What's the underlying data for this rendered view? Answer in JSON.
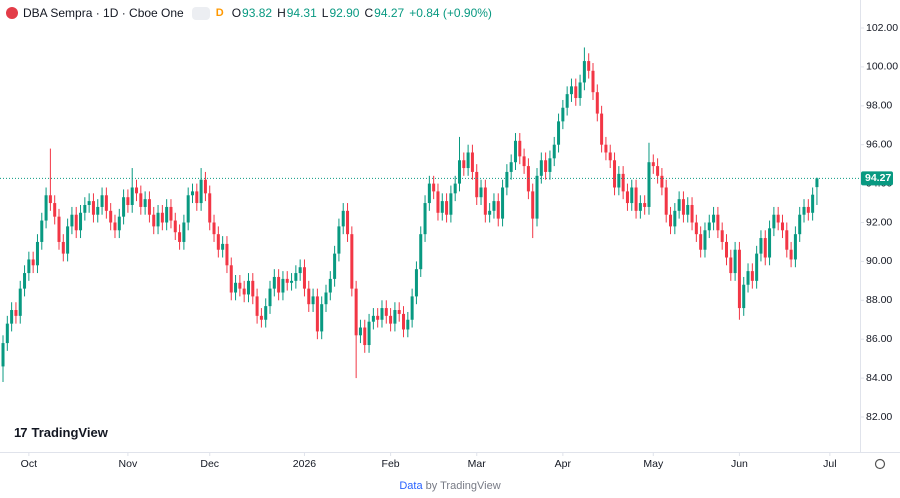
{
  "header": {
    "symbol": "DBA Sempra · 1D · Cboe One",
    "badge": "D",
    "o_label": "O",
    "open": "93.82",
    "h_label": "H",
    "high": "94.31",
    "l_label": "L",
    "low": "92.90",
    "c_label": "C",
    "close": "94.27",
    "change": "+0.84 (+0.90%)"
  },
  "logo": "TradingView",
  "footer": {
    "link": "Data",
    "text": "by TradingView"
  },
  "chart_data": {
    "type": "candlestick",
    "up_color": "#089981",
    "down_color": "#f23645",
    "price_tag": "94.27",
    "ylim": [
      80.2,
      103.44
    ],
    "xlim": [
      -0.7,
      199
    ],
    "yticks": [
      {
        "value": 82,
        "label": "82.00"
      },
      {
        "value": 84,
        "label": "84.00"
      },
      {
        "value": 86,
        "label": "86.00"
      },
      {
        "value": 88,
        "label": "88.00"
      },
      {
        "value": 90,
        "label": "90.00"
      },
      {
        "value": 92,
        "label": "92.00"
      },
      {
        "value": 94,
        "label": "94.00"
      },
      {
        "value": 96,
        "label": "96.00"
      },
      {
        "value": 98,
        "label": "98.00"
      },
      {
        "value": 100,
        "label": "100.00"
      },
      {
        "value": 102,
        "label": "102.00"
      }
    ],
    "xticks": [
      {
        "value": 6,
        "label": "Oct"
      },
      {
        "value": 29,
        "label": "Nov"
      },
      {
        "value": 48,
        "label": "Dec"
      },
      {
        "value": 70,
        "label": "2026"
      },
      {
        "value": 90,
        "label": "Feb"
      },
      {
        "value": 110,
        "label": "Mar"
      },
      {
        "value": 130,
        "label": "Apr"
      },
      {
        "value": 151,
        "label": "May"
      },
      {
        "value": 171,
        "label": "Jun"
      },
      {
        "value": 192,
        "label": "Jul"
      }
    ],
    "open": [
      84.6,
      85.8,
      86.8,
      87.5,
      87.2,
      88.6,
      89.4,
      90.1,
      89.8,
      91.0,
      92.1,
      93.4,
      93.0,
      92.3,
      91.0,
      90.4,
      91.8,
      92.4,
      91.6,
      92.5,
      92.9,
      93.1,
      92.4,
      92.8,
      93.4,
      92.6,
      92.0,
      91.6,
      92.3,
      93.3,
      92.9,
      93.8,
      93.5,
      92.8,
      93.2,
      92.4,
      91.8,
      92.5,
      92.0,
      92.8,
      92.1,
      91.5,
      91.0,
      92.0,
      93.4,
      93.6,
      93.0,
      94.2,
      93.5,
      92.0,
      91.4,
      90.6,
      90.9,
      89.8,
      88.4,
      88.9,
      88.6,
      88.3,
      89.0,
      88.2,
      87.2,
      87.0,
      87.7,
      88.6,
      89.2,
      88.4,
      89.1,
      88.9,
      89.0,
      89.4,
      89.7,
      88.6,
      87.8,
      88.2,
      86.4,
      87.8,
      88.4,
      89.1,
      90.4,
      91.8,
      92.6,
      91.4,
      88.6,
      86.2,
      86.6,
      85.7,
      86.9,
      87.2,
      87.0,
      87.6,
      87.2,
      86.8,
      87.5,
      87.3,
      86.5,
      87.0,
      88.2,
      89.6,
      91.4,
      93.0,
      94.0,
      93.6,
      92.5,
      93.1,
      92.4,
      93.5,
      94.0,
      95.2,
      94.8,
      95.6,
      94.6,
      93.3,
      93.8,
      92.4,
      92.6,
      93.1,
      92.2,
      93.8,
      94.6,
      95.1,
      96.2,
      95.4,
      94.9,
      93.6,
      92.2,
      94.4,
      95.2,
      94.6,
      95.3,
      96.0,
      97.2,
      97.9,
      98.6,
      99.0,
      98.4,
      99.2,
      100.3,
      99.8,
      98.7,
      97.6,
      96.0,
      95.6,
      95.2,
      93.8,
      94.5,
      93.6,
      93.0,
      93.8,
      92.6,
      93.0,
      92.8,
      95.1,
      94.9,
      94.4,
      93.8,
      92.4,
      91.8,
      92.6,
      93.2,
      92.4,
      92.9,
      92.0,
      91.4,
      90.6,
      91.6,
      92.0,
      92.4,
      91.6,
      91.0,
      90.2,
      89.4,
      90.6,
      87.6,
      88.8,
      89.5,
      89.0,
      90.4,
      91.2,
      90.2,
      91.7,
      92.4,
      92.0,
      91.6,
      90.6,
      90.1,
      91.4,
      92.4,
      92.8,
      92.5,
      93.82
    ],
    "high": [
      86.2,
      87.2,
      87.9,
      87.9,
      89.0,
      89.8,
      90.5,
      90.5,
      91.4,
      92.5,
      93.8,
      95.8,
      93.4,
      92.7,
      91.4,
      92.2,
      92.8,
      92.8,
      92.9,
      93.3,
      93.5,
      93.5,
      93.2,
      93.8,
      93.8,
      93.0,
      92.4,
      92.7,
      93.7,
      93.7,
      94.8,
      94.2,
      93.9,
      93.6,
      93.6,
      92.8,
      92.9,
      92.9,
      93.2,
      93.2,
      92.5,
      91.9,
      92.4,
      93.8,
      94.0,
      94.0,
      94.8,
      94.6,
      93.9,
      92.4,
      91.8,
      91.3,
      91.3,
      90.2,
      89.3,
      89.3,
      89.0,
      89.4,
      89.4,
      88.6,
      87.6,
      88.1,
      89.0,
      89.6,
      89.6,
      89.5,
      89.5,
      89.4,
      89.8,
      90.1,
      90.1,
      89.0,
      88.6,
      88.6,
      88.2,
      88.8,
      89.5,
      90.8,
      92.2,
      93.0,
      93.0,
      91.8,
      89.0,
      87.0,
      87.0,
      87.3,
      87.6,
      87.6,
      88.0,
      88.0,
      87.6,
      87.9,
      87.9,
      87.7,
      87.4,
      88.6,
      90.0,
      91.8,
      93.4,
      94.4,
      94.4,
      94.0,
      93.5,
      93.5,
      93.9,
      94.4,
      96.4,
      95.6,
      96.0,
      96.0,
      95.0,
      94.2,
      94.2,
      93.0,
      93.5,
      93.5,
      94.2,
      95.0,
      95.5,
      96.6,
      96.6,
      95.8,
      95.3,
      94.0,
      94.8,
      95.6,
      95.6,
      95.7,
      96.4,
      97.6,
      98.3,
      99.0,
      99.4,
      99.4,
      99.6,
      101.0,
      100.7,
      100.2,
      99.1,
      98.0,
      96.4,
      96.0,
      95.6,
      94.9,
      94.9,
      94.0,
      94.2,
      94.2,
      93.4,
      93.4,
      96.1,
      95.5,
      95.3,
      94.8,
      94.2,
      92.8,
      93.0,
      93.6,
      93.6,
      93.3,
      93.3,
      92.4,
      91.8,
      92.0,
      92.4,
      92.8,
      92.8,
      92.0,
      91.4,
      90.6,
      91.0,
      91.0,
      89.2,
      89.9,
      89.9,
      90.8,
      91.6,
      91.6,
      92.1,
      92.8,
      92.8,
      92.4,
      92.0,
      91.0,
      91.8,
      92.8,
      93.2,
      93.2,
      93.8,
      94.31
    ],
    "low": [
      83.8,
      85.4,
      86.4,
      86.8,
      86.8,
      88.2,
      89.0,
      89.4,
      89.4,
      90.6,
      91.7,
      92.6,
      91.9,
      90.6,
      90.0,
      90.0,
      91.4,
      91.2,
      91.2,
      92.1,
      92.5,
      92.0,
      92.0,
      92.4,
      92.2,
      91.6,
      91.2,
      91.2,
      91.9,
      92.5,
      92.5,
      93.1,
      92.4,
      92.4,
      92.0,
      91.4,
      91.4,
      91.6,
      91.6,
      91.7,
      91.1,
      90.6,
      90.6,
      91.6,
      93.0,
      92.6,
      92.6,
      93.1,
      91.6,
      91.0,
      90.2,
      90.2,
      89.4,
      88.0,
      88.0,
      88.2,
      87.9,
      87.9,
      87.8,
      86.8,
      86.6,
      86.6,
      87.3,
      88.2,
      88.0,
      88.0,
      88.5,
      88.5,
      88.6,
      89.0,
      88.2,
      87.4,
      87.4,
      86.0,
      86.0,
      87.4,
      88.0,
      88.7,
      90.0,
      91.4,
      91.0,
      88.2,
      84.0,
      85.8,
      85.3,
      85.3,
      86.5,
      86.6,
      86.6,
      86.8,
      86.4,
      86.4,
      86.9,
      86.1,
      86.1,
      86.6,
      87.8,
      89.2,
      91.0,
      92.6,
      93.2,
      92.1,
      92.1,
      92.0,
      92.0,
      93.1,
      93.6,
      94.4,
      94.4,
      94.2,
      92.9,
      92.9,
      92.0,
      92.0,
      92.2,
      91.8,
      91.8,
      93.4,
      94.2,
      94.7,
      95.0,
      94.5,
      93.2,
      91.2,
      91.8,
      94.0,
      94.2,
      94.2,
      94.9,
      95.6,
      96.8,
      97.5,
      98.2,
      98.0,
      98.0,
      98.8,
      99.4,
      98.3,
      97.2,
      95.6,
      95.2,
      94.8,
      93.4,
      93.4,
      93.2,
      92.6,
      92.6,
      92.2,
      92.2,
      92.4,
      92.4,
      94.5,
      94.0,
      93.4,
      92.0,
      91.4,
      91.4,
      92.2,
      92.0,
      92.0,
      91.6,
      91.0,
      90.2,
      90.2,
      91.2,
      91.6,
      91.2,
      90.6,
      89.8,
      89.0,
      89.0,
      87.0,
      87.2,
      88.4,
      88.6,
      88.6,
      90.0,
      89.8,
      89.8,
      91.3,
      91.6,
      91.2,
      90.2,
      89.7,
      89.7,
      91.0,
      92.0,
      92.1,
      92.1,
      92.9
    ],
    "close": [
      85.8,
      86.8,
      87.5,
      87.2,
      88.6,
      89.4,
      90.1,
      89.8,
      91.0,
      92.1,
      93.4,
      93.0,
      92.3,
      91.0,
      90.4,
      91.8,
      92.4,
      91.6,
      92.5,
      92.9,
      93.1,
      92.4,
      92.8,
      93.4,
      92.6,
      92.0,
      91.6,
      92.3,
      93.3,
      92.9,
      93.8,
      93.5,
      92.8,
      93.2,
      92.4,
      91.8,
      92.5,
      92.0,
      92.8,
      92.1,
      91.5,
      91.0,
      92.0,
      93.4,
      93.6,
      93.0,
      94.2,
      93.5,
      92.0,
      91.4,
      90.6,
      90.9,
      89.8,
      88.4,
      88.9,
      88.6,
      88.3,
      89.0,
      88.2,
      87.2,
      87.0,
      87.7,
      88.6,
      89.2,
      88.4,
      89.1,
      88.9,
      89.0,
      89.4,
      89.7,
      88.6,
      87.8,
      88.2,
      86.4,
      87.8,
      88.4,
      89.1,
      90.4,
      91.8,
      92.6,
      91.4,
      88.6,
      86.2,
      86.6,
      85.7,
      86.9,
      87.2,
      87.0,
      87.6,
      87.2,
      86.8,
      87.5,
      87.3,
      86.5,
      87.0,
      88.2,
      89.6,
      91.4,
      93.0,
      94.0,
      93.6,
      92.5,
      93.1,
      92.4,
      93.5,
      94.0,
      95.2,
      94.8,
      95.6,
      94.6,
      93.3,
      93.8,
      92.4,
      92.6,
      93.1,
      92.2,
      93.8,
      94.6,
      95.1,
      96.2,
      95.4,
      94.9,
      93.6,
      92.2,
      94.4,
      95.2,
      94.6,
      95.3,
      96.0,
      97.2,
      97.9,
      98.6,
      99.0,
      98.4,
      99.2,
      100.3,
      99.8,
      98.7,
      97.6,
      96.0,
      95.6,
      95.2,
      93.8,
      94.5,
      93.6,
      93.0,
      93.8,
      92.6,
      93.0,
      92.8,
      95.1,
      94.9,
      94.4,
      93.8,
      92.4,
      91.8,
      92.6,
      93.2,
      92.4,
      92.9,
      92.0,
      91.4,
      90.6,
      91.6,
      92.0,
      92.4,
      91.6,
      91.0,
      90.2,
      89.4,
      90.6,
      87.6,
      88.8,
      89.5,
      89.0,
      90.4,
      91.2,
      90.2,
      91.7,
      92.4,
      92.0,
      91.6,
      90.6,
      90.1,
      91.4,
      92.4,
      92.8,
      92.5,
      93.43,
      94.27
    ]
  }
}
